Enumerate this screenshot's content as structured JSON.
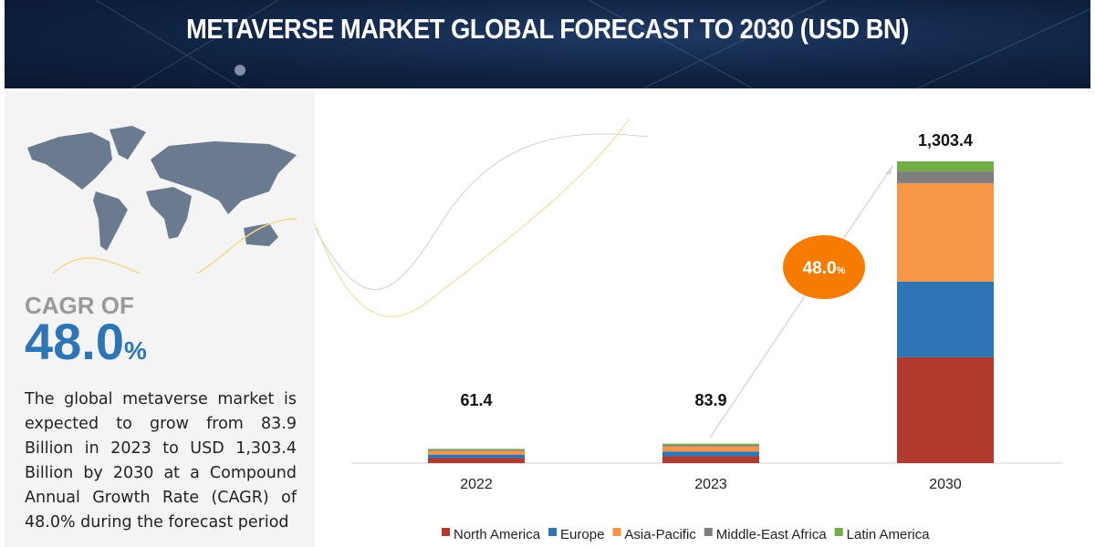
{
  "header": {
    "title": "METAVERSE MARKET GLOBAL FORECAST TO 2030 (USD BN)"
  },
  "left_panel": {
    "cagr_label": "CAGR OF",
    "cagr_value": "48.0",
    "cagr_unit": "%",
    "description": "The global metaverse market is expected to grow from 83.9 Billion in 2023 to USD 1,303.4 Billion by 2030 at a Compound Annual Growth Rate (CAGR) of 48.0% during the forecast period"
  },
  "chart_data": {
    "type": "bar",
    "stacked": true,
    "title": "METAVERSE MARKET GLOBAL FORECAST TO 2030 (USD BN)",
    "categories": [
      "2022",
      "2023",
      "2030"
    ],
    "totals": [
      61.4,
      83.9,
      1303.4
    ],
    "total_labels": [
      "61.4",
      "83.9",
      "1,303.4"
    ],
    "series": [
      {
        "name": "North America",
        "color": "#b03a2e",
        "values": [
          21.5,
          29.4,
          457
        ]
      },
      {
        "name": "Europe",
        "color": "#2e75b6",
        "values": [
          15.4,
          21.0,
          327
        ]
      },
      {
        "name": "Asia-Pacific",
        "color": "#f79646",
        "values": [
          16.0,
          22.0,
          425.4
        ]
      },
      {
        "name": "Middle-East Africa",
        "color": "#7f7f7f",
        "values": [
          4.5,
          6.0,
          51
        ]
      },
      {
        "name": "Latin America",
        "color": "#70ad47",
        "values": [
          4.0,
          5.5,
          43
        ]
      }
    ],
    "annotation": {
      "text": "48.0",
      "unit": "%",
      "color": "#f57c00"
    },
    "legend_position": "bottom",
    "grid": false,
    "ylim": [
      0,
      1303.4
    ]
  }
}
